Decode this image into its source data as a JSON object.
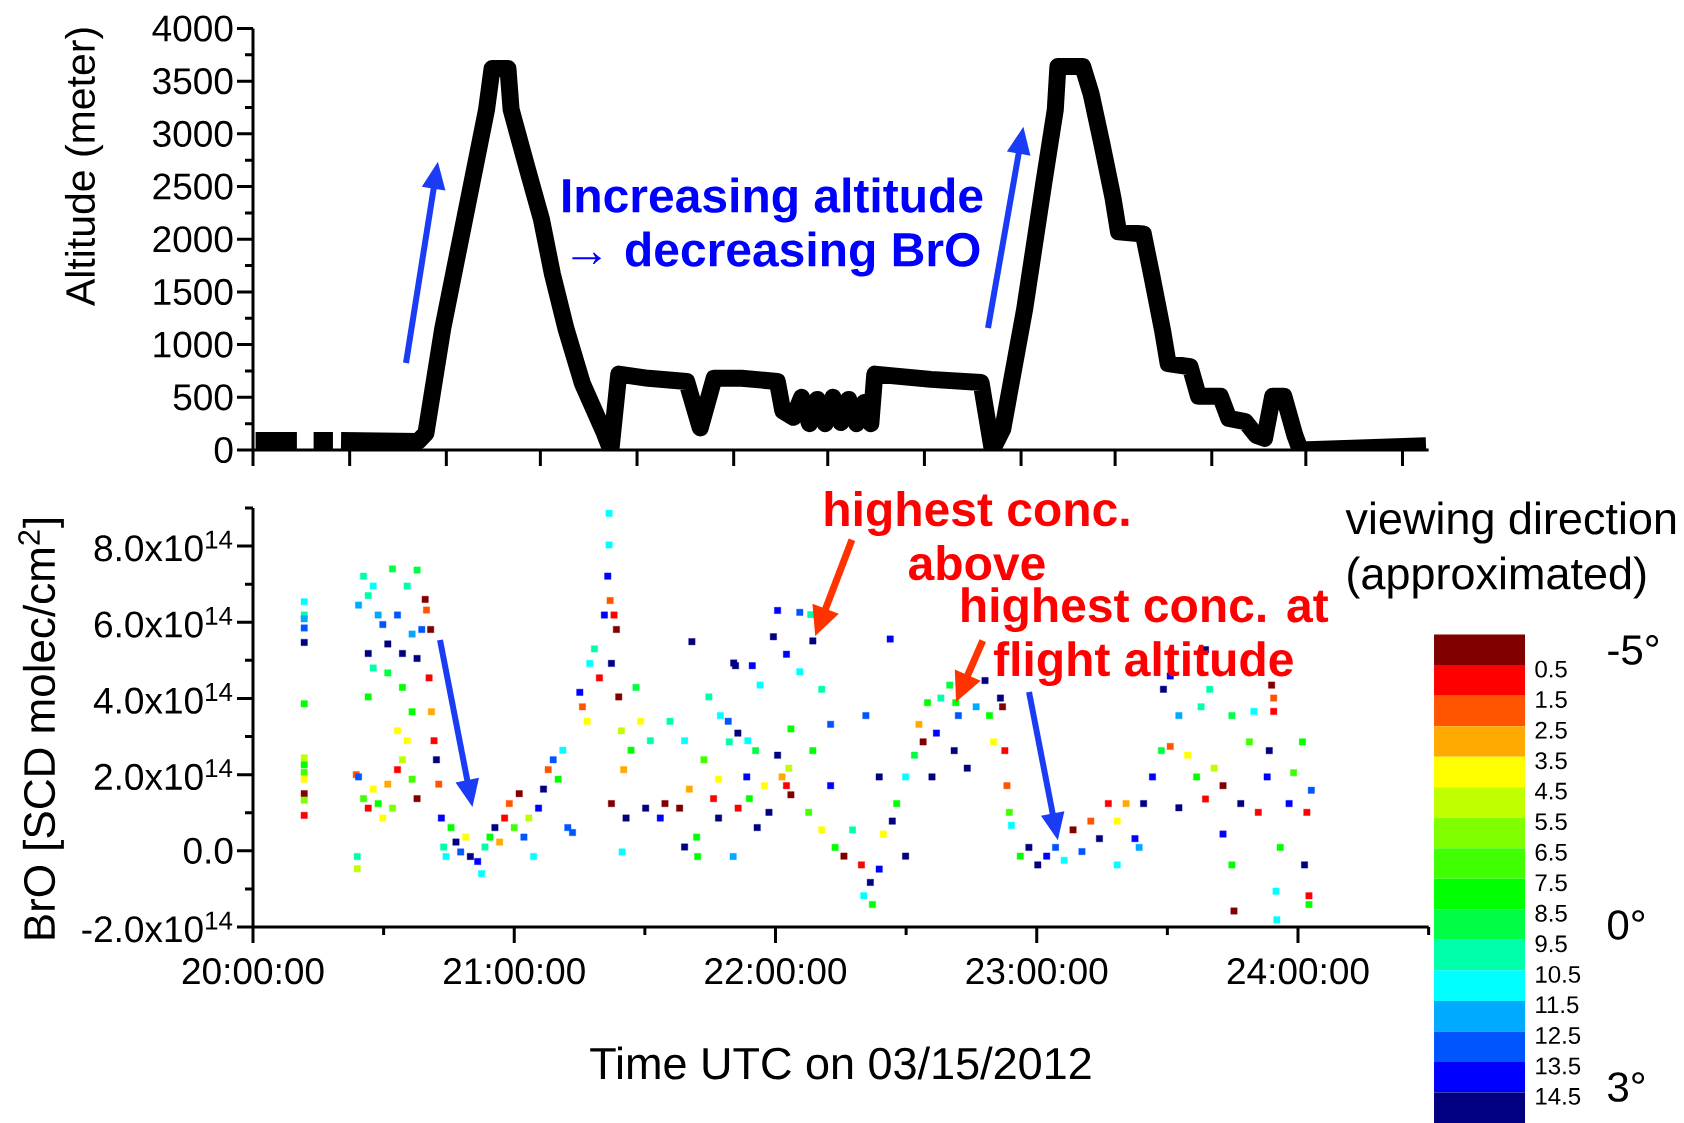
{
  "chart_data": [
    {
      "type": "line",
      "ylabel": "Altitude (meter)",
      "annotations": [
        "Increasing altitude → decreasing BrO"
      ],
      "color": "#000000",
      "x": [
        20.01,
        20.168,
        20.2,
        20.232,
        20.306,
        20.32,
        20.337,
        20.632,
        20.662,
        20.726,
        20.81,
        20.894,
        20.915,
        20.976,
        20.988,
        21.051,
        21.104,
        21.146,
        21.198,
        21.261,
        21.345,
        21.37,
        21.4,
        21.513,
        21.66,
        21.712,
        21.765,
        21.87,
        22.007,
        22.028,
        22.069,
        22.1,
        22.13,
        22.16,
        22.19,
        22.22,
        22.25,
        22.28,
        22.31,
        22.34,
        22.365,
        22.38,
        22.595,
        22.787,
        22.83,
        22.87,
        22.954,
        23.028,
        23.071,
        23.081,
        23.176,
        23.208,
        23.249,
        23.292,
        23.313,
        23.408,
        23.44,
        23.482,
        23.503,
        23.587,
        23.619,
        23.703,
        23.735,
        23.798,
        23.84,
        23.872,
        23.903,
        23.946,
        23.988,
        24.009,
        24.49
      ],
      "values": [
        90,
        90,
        null,
        90,
        90,
        null,
        90,
        80,
        160,
        1150,
        2190,
        3230,
        3620,
        3620,
        3230,
        2660,
        2190,
        1670,
        1150,
        630,
        160,
        0,
        720,
        680,
        650,
        210,
        680,
        680,
        650,
        370,
        310,
        500,
        250,
        480,
        250,
        500,
        260,
        480,
        250,
        450,
        250,
        720,
        670,
        640,
        0,
        200,
        1340,
        2550,
        3230,
        3640,
        3640,
        3380,
        2910,
        2390,
        2070,
        2050,
        1660,
        1130,
        820,
        790,
        510,
        510,
        300,
        270,
        140,
        110,
        510,
        510,
        140,
        0,
        40
      ],
      "xlim": [
        20,
        24.5
      ],
      "xticks": [
        {
          "value": 20,
          "label": null
        },
        {
          "value": 20.37,
          "label": null
        },
        {
          "value": 20.74,
          "label": null
        },
        {
          "value": 21.1,
          "label": null
        },
        {
          "value": 21.47,
          "label": null
        },
        {
          "value": 21.84,
          "label": null
        },
        {
          "value": 22.2,
          "label": null
        },
        {
          "value": 22.57,
          "label": null
        },
        {
          "value": 22.94,
          "label": null
        },
        {
          "value": 23.3,
          "label": null
        },
        {
          "value": 23.67,
          "label": null
        },
        {
          "value": 24.03,
          "label": null
        },
        {
          "value": 24.4,
          "label": null
        }
      ],
      "ylim": [
        0,
        4000
      ],
      "yticks": [
        0,
        {
          "value": 250,
          "label": null
        },
        500,
        {
          "value": 750,
          "label": null
        },
        1000,
        {
          "value": 1250,
          "label": null
        },
        1500,
        {
          "value": 1750,
          "label": null
        },
        2000,
        {
          "value": 2250,
          "label": null
        },
        2500,
        {
          "value": 2750,
          "label": null
        },
        3000,
        {
          "value": 3250,
          "label": null
        },
        3500,
        {
          "value": 3750,
          "label": null
        },
        4000
      ],
      "tick_labels": "y"
    },
    {
      "type": "scatter",
      "xlabel": "Time UTC on 03/15/2012",
      "ylabel": "BrO [SCD molec/cm$^{2}$]",
      "clabel": "viewing direction (approximated)",
      "marker": "square",
      "x": [
        20.196,
        20.196,
        20.196,
        20.196,
        20.196,
        20.196,
        20.196,
        20.196,
        20.196,
        20.196,
        20.196,
        20.196,
        20.196,
        20.395,
        20.399,
        20.399,
        20.404,
        20.404,
        20.423,
        20.423,
        20.441,
        20.441,
        20.441,
        20.441,
        20.46,
        20.46,
        20.46,
        20.479,
        20.479,
        20.497,
        20.497,
        20.516,
        20.516,
        20.516,
        20.534,
        20.534,
        20.553,
        20.553,
        20.553,
        20.572,
        20.572,
        20.572,
        20.59,
        20.59,
        20.609,
        20.609,
        20.609,
        20.628,
        20.628,
        20.628,
        20.646,
        20.659,
        20.664,
        20.674,
        20.68,
        20.683,
        20.693,
        20.702,
        20.711,
        20.721,
        20.73,
        20.739,
        20.758,
        20.777,
        20.795,
        20.814,
        20.832,
        20.86,
        20.875,
        20.888,
        20.907,
        20.926,
        20.944,
        20.963,
        20.981,
        21.0,
        21.019,
        21.037,
        21.056,
        21.074,
        21.093,
        21.112,
        21.13,
        21.149,
        21.168,
        21.186,
        21.205,
        21.223,
        21.251,
        21.261,
        21.279,
        21.289,
        21.307,
        21.326,
        21.345,
        21.358,
        21.363,
        21.363,
        21.367,
        21.372,
        21.372,
        21.382,
        21.391,
        21.4,
        21.41,
        21.413,
        21.419,
        21.428,
        21.447,
        21.466,
        21.484,
        21.503,
        21.521,
        21.559,
        21.577,
        21.596,
        21.633,
        21.652,
        21.652,
        21.67,
        21.68,
        21.698,
        21.702,
        21.726,
        21.745,
        21.763,
        21.782,
        21.782,
        21.789,
        21.819,
        21.823,
        21.838,
        21.84,
        21.847,
        21.856,
        21.857,
        21.89,
        21.894,
        21.9,
        21.911,
        21.924,
        21.93,
        21.941,
        21.958,
        21.975,
        21.992,
        22.008,
        22.008,
        22.025,
        22.042,
        22.042,
        22.051,
        22.059,
        22.059,
        22.093,
        22.093,
        22.127,
        22.135,
        22.143,
        22.143,
        22.177,
        22.177,
        22.211,
        22.211,
        22.228,
        22.262,
        22.295,
        22.329,
        22.338,
        22.346,
        22.363,
        22.371,
        22.397,
        22.397,
        22.413,
        22.439,
        22.447,
        22.464,
        22.498,
        22.498,
        22.532,
        22.549,
        22.565,
        22.582,
        22.599,
        22.616,
        22.633,
        22.667,
        22.684,
        22.7,
        22.734,
        22.768,
        22.802,
        22.819,
        22.835,
        22.861,
        22.869,
        22.878,
        22.886,
        22.895,
        22.903,
        22.937,
        22.97,
        23.004,
        23.038,
        23.072,
        23.105,
        23.139,
        23.173,
        23.207,
        23.24,
        23.274,
        23.308,
        23.308,
        23.342,
        23.376,
        23.392,
        23.409,
        23.443,
        23.477,
        23.485,
        23.511,
        23.511,
        23.544,
        23.544,
        23.578,
        23.612,
        23.629,
        23.646,
        23.646,
        23.662,
        23.679,
        23.713,
        23.713,
        23.747,
        23.747,
        23.755,
        23.781,
        23.814,
        23.831,
        23.848,
        23.882,
        23.89,
        23.899,
        23.907,
        23.907,
        23.916,
        23.919,
        23.932,
        23.966,
        23.983,
        24.017,
        24.025,
        24.034,
        24.042,
        24.042,
        24.051,
        22.69
      ],
      "values": [
        654000000000000.0,
        619000000000000.0,
        609000000000000.0,
        585000000000000.0,
        547000000000000.0,
        386000000000000.0,
        244000000000000.0,
        226000000000000.0,
        206000000000000.0,
        188000000000000.0,
        150000000000000.0,
        133000000000000.0,
        93000000000000.0,
        200000000000000.0,
        -15000000000000.0,
        -47000000000000.0,
        194000000000000.0,
        645000000000000.0,
        137000000000000.0,
        721000000000000.0,
        112000000000000.0,
        404000000000000.0,
        518000000000000.0,
        670000000000000.0,
        162000000000000.0,
        480000000000000.0,
        695000000000000.0,
        124000000000000.0,
        619000000000000.0,
        86000000000000.0,
        594000000000000.0,
        175000000000000.0,
        467000000000000.0,
        543000000000000.0,
        112000000000000.0,
        740000000000000.0,
        213000000000000.0,
        315000000000000.0,
        619000000000000.0,
        239000000000000.0,
        429000000000000.0,
        518000000000000.0,
        289000000000000.0,
        695000000000000.0,
        188000000000000.0,
        365000000000000.0,
        569000000000000.0,
        137000000000000.0,
        505000000000000.0,
        737000000000000.0,
        581000000000000.0,
        660000000000000.0,
        632000000000000.0,
        454000000000000.0,
        581000000000000.0,
        365000000000000.0,
        289000000000000.0,
        239000000000000.0,
        175000000000000.0,
        86000000000000.0,
        10000000000000.0,
        -15000000000000.0,
        61000000000000.0,
        23000000000000.0,
        -3000000000000.0,
        36000000000000.0,
        -15000000000000.0,
        -28000000000000.0,
        -60000000000000.0,
        10000000000000.0,
        36000000000000.0,
        61000000000000.0,
        23000000000000.0,
        86000000000000.0,
        124000000000000.0,
        61000000000000.0,
        150000000000000.0,
        36000000000000.0,
        86000000000000.0,
        -15000000000000.0,
        112000000000000.0,
        162000000000000.0,
        213000000000000.0,
        239000000000000.0,
        188000000000000.0,
        264000000000000.0,
        61000000000000.0,
        48000000000000.0,
        416000000000000.0,
        378000000000000.0,
        340000000000000.0,
        492000000000000.0,
        530000000000000.0,
        454000000000000.0,
        619000000000000.0,
        721000000000000.0,
        886000000000000.0,
        803000000000000.0,
        657000000000000.0,
        492000000000000.0,
        124000000000000.0,
        619000000000000.0,
        581000000000000.0,
        404000000000000.0,
        315000000000000.0,
        -3000000000000.0,
        213000000000000.0,
        86000000000000.0,
        264000000000000.0,
        429000000000000.0,
        340000000000000.0,
        112000000000000.0,
        289000000000000.0,
        86000000000000.0,
        124000000000000.0,
        340000000000000.0,
        112000000000000.0,
        289000000000000.0,
        10000000000000.0,
        162000000000000.0,
        549000000000000.0,
        36000000000000.0,
        -15000000000000.0,
        239000000000000.0,
        404000000000000.0,
        137000000000000.0,
        188000000000000.0,
        86000000000000.0,
        355000000000000.0,
        340000000000000.0,
        286000000000000.0,
        -15000000000000.0,
        493000000000000.0,
        486000000000000.0,
        309000000000000.0,
        112000000000000.0,
        194000000000000.0,
        289000000000000.0,
        137000000000000.0,
        486000000000000.0,
        263000000000000.0,
        61000000000000.0,
        435000000000000.0,
        171000000000000.0,
        101000000000000.0,
        562000000000000.0,
        251000000000000.0,
        631000000000000.0,
        194000000000000.0,
        171000000000000.0,
        516000000000000.0,
        217000000000000.0,
        147000000000000.0,
        320000000000000.0,
        626000000000000.0,
        470000000000000.0,
        101000000000000.0,
        620000000000000.0,
        551000000000000.0,
        263000000000000.0,
        424000000000000.0,
        55000000000000.0,
        332000000000000.0,
        171000000000000.0,
        9000000000000.0,
        -14000000000000.0,
        55000000000000.0,
        -37000000000000.0,
        -118000000000000.0,
        355000000000000.0,
        -83000000000000.0,
        -141000000000000.0,
        -48000000000000.0,
        194000000000000.0,
        44000000000000.0,
        556000000000000.0,
        78000000000000.0,
        124000000000000.0,
        -14000000000000.0,
        194000000000000.0,
        251000000000000.0,
        332000000000000.0,
        286000000000000.0,
        389000000000000.0,
        194000000000000.0,
        309000000000000.0,
        401000000000000.0,
        435000000000000.0,
        263000000000000.0,
        355000000000000.0,
        217000000000000.0,
        378000000000000.0,
        447000000000000.0,
        355000000000000.0,
        286000000000000.0,
        401000000000000.0,
        378000000000000.0,
        263000000000000.0,
        171000000000000.0,
        101000000000000.0,
        67000000000000.0,
        -14000000000000.0,
        9000000000000.0,
        -37000000000000.0,
        -14000000000000.0,
        9000000000000.0,
        -25000000000000.0,
        55000000000000.0,
        -2000000000000.0,
        78000000000000.0,
        32000000000000.0,
        124000000000000.0,
        78000000000000.0,
        -37000000000000.0,
        124000000000000.0,
        32000000000000.0,
        9000000000000.0,
        124000000000000.0,
        194000000000000.0,
        263000000000000.0,
        424000000000000.0,
        459000000000000.0,
        274000000000000.0,
        355000000000000.0,
        113000000000000.0,
        251000000000000.0,
        194000000000000.0,
        378000000000000.0,
        528000000000000.0,
        136000000000000.0,
        424000000000000.0,
        217000000000000.0,
        171000000000000.0,
        44000000000000.0,
        -37000000000000.0,
        355000000000000.0,
        -158000000000000.0,
        124000000000000.0,
        286000000000000.0,
        366000000000000.0,
        101000000000000.0,
        194000000000000.0,
        263000000000000.0,
        435000000000000.0,
        401000000000000.0,
        366000000000000.0,
        -106000000000000.0,
        -181000000000000.0,
        9000000000000.0,
        124000000000000.0,
        205000000000000.0,
        286000000000000.0,
        -37000000000000.0,
        101000000000000.0,
        -118000000000000.0,
        -141000000000000.0,
        159000000000000.0,
        389000000000000.0
      ],
      "cvalues": [
        11,
        10,
        12,
        13,
        15,
        8,
        5,
        8,
        7,
        4,
        0,
        6,
        1,
        2,
        10,
        5,
        13,
        12,
        7,
        10,
        1,
        8,
        15,
        10,
        4,
        10,
        11,
        8,
        12,
        4,
        13,
        3,
        9,
        15,
        6,
        9,
        1,
        4,
        13,
        5,
        8,
        15,
        4,
        10,
        7,
        8,
        12,
        0,
        15,
        9,
        13,
        0,
        2,
        1,
        0,
        3,
        1,
        15,
        2,
        14,
        10,
        11,
        8,
        15,
        13,
        4,
        15,
        14,
        11,
        10,
        8,
        15,
        3,
        1,
        2,
        7,
        0,
        13,
        5,
        11,
        14,
        15,
        2,
        13,
        8,
        11,
        13,
        13,
        14,
        2,
        4,
        11,
        10,
        1,
        14,
        14,
        11,
        11,
        2,
        15,
        0,
        1,
        0,
        0,
        5,
        11,
        3,
        15,
        8,
        9,
        4,
        15,
        10,
        14,
        0,
        10,
        0,
        11,
        15,
        3,
        15,
        8,
        8,
        7,
        10,
        1,
        4,
        15,
        11,
        13,
        10,
        12,
        15,
        15,
        15,
        1,
        14,
        11,
        8,
        14,
        9,
        15,
        11,
        4,
        15,
        15,
        15,
        14,
        3,
        1,
        14,
        5,
        0,
        8,
        13,
        11,
        7,
        10,
        15,
        8,
        10,
        4,
        13,
        14,
        8,
        0,
        10,
        1,
        11,
        13,
        15,
        8,
        14,
        15,
        4,
        14,
        15,
        8,
        15,
        11,
        9,
        3,
        0,
        8,
        15,
        14,
        10,
        9,
        15,
        13,
        15,
        12,
        15,
        8,
        4,
        15,
        0,
        1,
        2,
        7,
        11,
        8,
        15,
        15,
        14,
        13,
        11,
        0,
        13,
        2,
        15,
        1,
        4,
        11,
        3,
        14,
        12,
        15,
        14,
        9,
        15,
        14,
        2,
        12,
        15,
        4,
        8,
        10,
        15,
        1,
        10,
        5,
        0,
        14,
        8,
        9,
        0,
        15,
        7,
        11,
        1,
        14,
        15,
        0,
        2,
        1,
        11,
        11,
        8,
        14,
        7,
        8,
        15,
        1,
        1,
        8,
        13,
        8
      ],
      "xlim": [
        20,
        24.5
      ],
      "xticks": [
        {
          "value": 20,
          "label": "20:00:00"
        },
        {
          "value": 20.5,
          "label": null
        },
        {
          "value": 21,
          "label": "21:00:00"
        },
        {
          "value": 21.5,
          "label": null
        },
        {
          "value": 22,
          "label": "22:00:00"
        },
        {
          "value": 22.5,
          "label": null
        },
        {
          "value": 23,
          "label": "23:00:00"
        },
        {
          "value": 23.5,
          "label": null
        },
        {
          "value": 24,
          "label": "24:00:00"
        },
        {
          "value": 24.5,
          "label": null
        }
      ],
      "ylim": [
        -200000000000000.0,
        900000000000000.0
      ],
      "yticks": [
        {
          "value": -200000000000000.0,
          "label": "-2.0x10$^{14}$"
        },
        {
          "value": -100000000000000.0,
          "label": null
        },
        {
          "value": 0,
          "label": "0.0"
        },
        {
          "value": 100000000000000.0,
          "label": null
        },
        {
          "value": 200000000000000.0,
          "label": "2.0x10$^{14}$"
        },
        {
          "value": 300000000000000.0,
          "label": null
        },
        {
          "value": 400000000000000.0,
          "label": "4.0x10$^{14}$"
        },
        {
          "value": 500000000000000.0,
          "label": null
        },
        {
          "value": 600000000000000.0,
          "label": "6.0x10$^{14}$"
        },
        {
          "value": 700000000000000.0,
          "label": null
        },
        {
          "value": 800000000000000.0,
          "label": "8.0x10$^{14}$"
        },
        {
          "value": 900000000000000.0,
          "label": null
        }
      ],
      "clim": [
        15.5,
        -0.5
      ],
      "cticks": [
        0.5,
        1.5,
        2.5,
        3.5,
        4.5,
        5.5,
        6.5,
        7.5,
        8.5,
        9.5,
        10.5,
        11.5,
        12.5,
        13.5,
        14.5
      ],
      "annotations": [
        {
          "text": "highest conc. above",
          "x": 22.151,
          "y": 562000000000000.0
        },
        {
          "text": "highest conc. at flight altitude",
          "x": 22.69,
          "y": 389000000000000.0
        },
        "-5°",
        "0°",
        "3°"
      ]
    }
  ]
}
